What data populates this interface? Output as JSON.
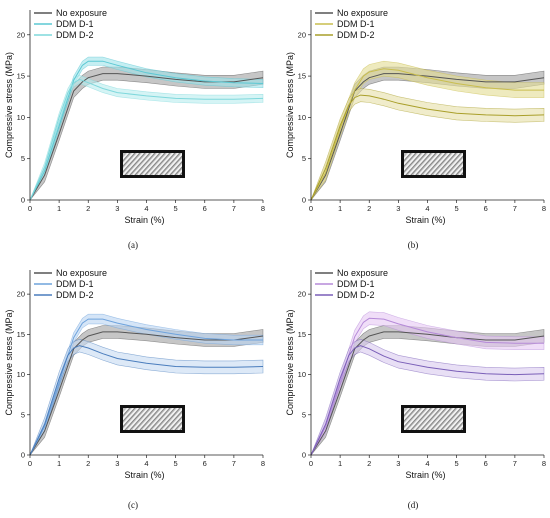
{
  "chart_data": [
    {
      "type": "line",
      "caption": "(a)",
      "xlabel": "Strain (%)",
      "ylabel": "Compressive stress (MPa)",
      "xlim": [
        0,
        8
      ],
      "ylim": [
        0,
        23
      ],
      "xticks": [
        "0",
        "1",
        "2",
        "3",
        "4",
        "5",
        "6",
        "7",
        "8"
      ],
      "yticks": [
        "0",
        "5",
        "10",
        "15",
        "20"
      ],
      "legend_position": "top-left",
      "series": [
        {
          "name": "No exposure",
          "color": "#555555",
          "band": "#a0a0a0",
          "x": [
            0,
            0.5,
            1,
            1.5,
            1.8,
            2,
            2.5,
            3,
            4,
            5,
            6,
            7,
            8
          ],
          "y": [
            0,
            3,
            8,
            13.2,
            14.3,
            14.8,
            15.3,
            15.3,
            15,
            14.6,
            14.3,
            14.3,
            14.8
          ],
          "bw": 0.8
        },
        {
          "name": "DDM D-1",
          "color": "#5bc8d3",
          "band": "#9fe3ea",
          "x": [
            0,
            0.5,
            1,
            1.5,
            1.8,
            2,
            2.5,
            3,
            4,
            5,
            6,
            7,
            8
          ],
          "y": [
            0,
            3.5,
            9,
            14.5,
            16.3,
            16.8,
            16.8,
            16.3,
            15.4,
            14.8,
            14.4,
            14.2,
            14.1
          ],
          "bw": 0.5
        },
        {
          "name": "DDM D-2",
          "color": "#7fd8dc",
          "band": "#b9ecef",
          "x": [
            0,
            0.5,
            1,
            1.3,
            1.5,
            1.7,
            2,
            2.5,
            3,
            4,
            5,
            6,
            7,
            8
          ],
          "y": [
            0,
            4,
            10,
            13,
            14.2,
            14.6,
            14.2,
            13.5,
            13,
            12.6,
            12.3,
            12.2,
            12.2,
            12.3
          ],
          "bw": 0.5
        }
      ]
    },
    {
      "type": "line",
      "caption": "(b)",
      "xlabel": "Strain (%)",
      "ylabel": "Compressive stress (MPa)",
      "xlim": [
        0,
        8
      ],
      "ylim": [
        0,
        23
      ],
      "xticks": [
        "0",
        "1",
        "2",
        "3",
        "4",
        "5",
        "6",
        "7",
        "8"
      ],
      "yticks": [
        "0",
        "5",
        "10",
        "15",
        "20"
      ],
      "legend_position": "top-left",
      "series": [
        {
          "name": "No exposure",
          "color": "#555555",
          "band": "#a0a0a0",
          "x": [
            0,
            0.5,
            1,
            1.5,
            1.8,
            2,
            2.5,
            3,
            4,
            5,
            6,
            7,
            8
          ],
          "y": [
            0,
            3,
            8,
            13.2,
            14.3,
            14.8,
            15.3,
            15.3,
            15,
            14.6,
            14.3,
            14.3,
            14.8
          ],
          "bw": 0.8
        },
        {
          "name": "DDM D-1",
          "color": "#c9be4e",
          "band": "#e3dc93",
          "x": [
            0,
            0.5,
            1,
            1.5,
            1.8,
            2,
            2.5,
            3,
            4,
            5,
            6,
            7,
            8
          ],
          "y": [
            0,
            3.3,
            8.6,
            13.3,
            15,
            15.5,
            15.9,
            15.7,
            14.8,
            14.1,
            13.6,
            13.3,
            13.3
          ],
          "bw": 0.9
        },
        {
          "name": "DDM D-2",
          "color": "#a99f2a",
          "band": "#e6e0a8",
          "x": [
            0,
            0.5,
            1,
            1.3,
            1.5,
            1.7,
            2,
            2.5,
            3,
            4,
            5,
            6,
            7,
            8
          ],
          "y": [
            0,
            3.8,
            9,
            11.5,
            12.4,
            12.7,
            12.6,
            12.2,
            11.7,
            11,
            10.5,
            10.3,
            10.2,
            10.3
          ],
          "bw": 0.8
        }
      ]
    },
    {
      "type": "line",
      "caption": "(c)",
      "xlabel": "Strain (%)",
      "ylabel": "Compressive stress (MPa)",
      "xlim": [
        0,
        8
      ],
      "ylim": [
        0,
        23
      ],
      "xticks": [
        "0",
        "1",
        "2",
        "3",
        "4",
        "5",
        "6",
        "7",
        "8"
      ],
      "yticks": [
        "0",
        "5",
        "10",
        "15",
        "20"
      ],
      "legend_position": "top-left",
      "series": [
        {
          "name": "No exposure",
          "color": "#555555",
          "band": "#a0a0a0",
          "x": [
            0,
            0.5,
            1,
            1.5,
            1.8,
            2,
            2.5,
            3,
            4,
            5,
            6,
            7,
            8
          ],
          "y": [
            0,
            3,
            8,
            13.2,
            14.3,
            14.8,
            15.3,
            15.3,
            15,
            14.6,
            14.3,
            14.3,
            14.8
          ],
          "bw": 0.8
        },
        {
          "name": "DDM D-1",
          "color": "#6fa3dc",
          "band": "#b9d3f1",
          "x": [
            0,
            0.5,
            1,
            1.5,
            1.8,
            2,
            2.5,
            3,
            4,
            5,
            6,
            7,
            8
          ],
          "y": [
            0,
            3.5,
            9,
            14.6,
            16.4,
            16.9,
            16.9,
            16.4,
            15.6,
            15,
            14.5,
            14.3,
            14.3
          ],
          "bw": 0.6
        },
        {
          "name": "DDM D-2",
          "color": "#4a7dbd",
          "band": "#c6daf1",
          "x": [
            0,
            0.5,
            1,
            1.3,
            1.5,
            1.7,
            2,
            2.5,
            3,
            4,
            5,
            6,
            7,
            8
          ],
          "y": [
            0,
            3.8,
            9.5,
            12.4,
            13.3,
            13.6,
            13.3,
            12.6,
            12,
            11.4,
            11,
            10.9,
            10.9,
            11
          ],
          "bw": 0.8
        }
      ]
    },
    {
      "type": "line",
      "caption": "(d)",
      "xlabel": "Strain (%)",
      "ylabel": "Compressive stress (MPa)",
      "xlim": [
        0,
        8
      ],
      "ylim": [
        0,
        23
      ],
      "xticks": [
        "0",
        "1",
        "2",
        "3",
        "4",
        "5",
        "6",
        "7",
        "8"
      ],
      "yticks": [
        "0",
        "5",
        "10",
        "15",
        "20"
      ],
      "legend_position": "top-left",
      "series": [
        {
          "name": "No exposure",
          "color": "#555555",
          "band": "#a0a0a0",
          "x": [
            0,
            0.5,
            1,
            1.5,
            1.8,
            2,
            2.5,
            3,
            4,
            5,
            6,
            7,
            8
          ],
          "y": [
            0,
            3,
            8,
            13.2,
            14.3,
            14.8,
            15.3,
            15.3,
            15,
            14.6,
            14.3,
            14.3,
            14.8
          ],
          "bw": 0.8
        },
        {
          "name": "DDM D-1",
          "color": "#b58ad8",
          "band": "#e6c8f4",
          "x": [
            0,
            0.5,
            1,
            1.5,
            1.8,
            2,
            2.5,
            3,
            4,
            5,
            6,
            7,
            8
          ],
          "y": [
            0,
            3.5,
            9,
            14.7,
            16.5,
            17,
            16.9,
            16.3,
            15.3,
            14.6,
            14,
            13.9,
            13.9
          ],
          "bw": 0.8
        },
        {
          "name": "DDM D-2",
          "color": "#7a5fb8",
          "band": "#d8c9ef",
          "x": [
            0,
            0.5,
            1,
            1.3,
            1.5,
            1.7,
            2,
            2.5,
            3,
            4,
            5,
            6,
            7,
            8
          ],
          "y": [
            0,
            3.8,
            9.5,
            12.4,
            13.3,
            13.6,
            13.2,
            12.3,
            11.6,
            10.9,
            10.4,
            10.1,
            10,
            10.1
          ],
          "bw": 0.8
        }
      ]
    }
  ]
}
